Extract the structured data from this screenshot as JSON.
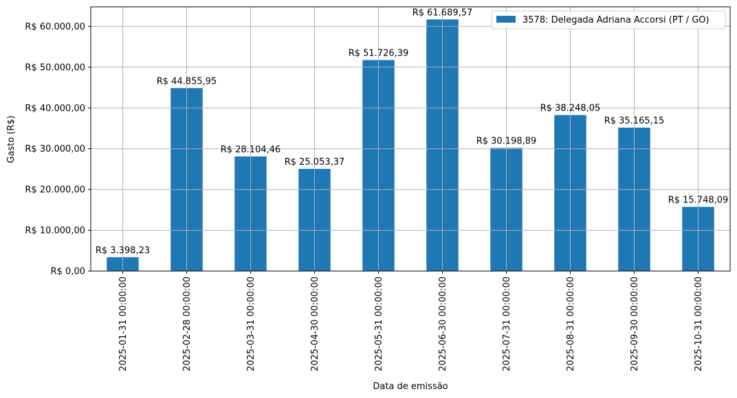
{
  "chart_data": {
    "type": "bar",
    "title": "",
    "xlabel": "Data de emissão",
    "ylabel": "Gasto (R$)",
    "ylim": [
      0,
      64774
    ],
    "grid": true,
    "legend_position": "top-right",
    "categories": [
      "2025-01-31 00:00:00",
      "2025-02-28 00:00:00",
      "2025-03-31 00:00:00",
      "2025-04-30 00:00:00",
      "2025-05-31 00:00:00",
      "2025-06-30 00:00:00",
      "2025-07-31 00:00:00",
      "2025-08-31 00:00:00",
      "2025-09-30 00:00:00",
      "2025-10-31 00:00:00"
    ],
    "series": [
      {
        "name": "3578: Delegada Adriana Accorsi (PT / GO)",
        "color": "#1f77b4",
        "values": [
          3398.23,
          44855.95,
          28104.46,
          25053.37,
          51726.39,
          61689.57,
          30198.89,
          38248.05,
          35165.15,
          15748.09
        ],
        "labels": [
          "R$ 3.398,23",
          "R$ 44.855,95",
          "R$ 28.104,46",
          "R$ 25.053,37",
          "R$ 51.726,39",
          "R$ 61.689,57",
          "R$ 30.198,89",
          "R$ 38.248,05",
          "R$ 35.165,15",
          "R$ 15.748,09"
        ]
      }
    ],
    "yticks": [
      0,
      10000,
      20000,
      30000,
      40000,
      50000,
      60000
    ],
    "ytick_labels": [
      "R$ 0,00",
      "R$ 10.000,00",
      "R$ 20.000,00",
      "R$ 30.000,00",
      "R$ 40.000,00",
      "R$ 50.000,00",
      "R$ 60.000,00"
    ]
  }
}
